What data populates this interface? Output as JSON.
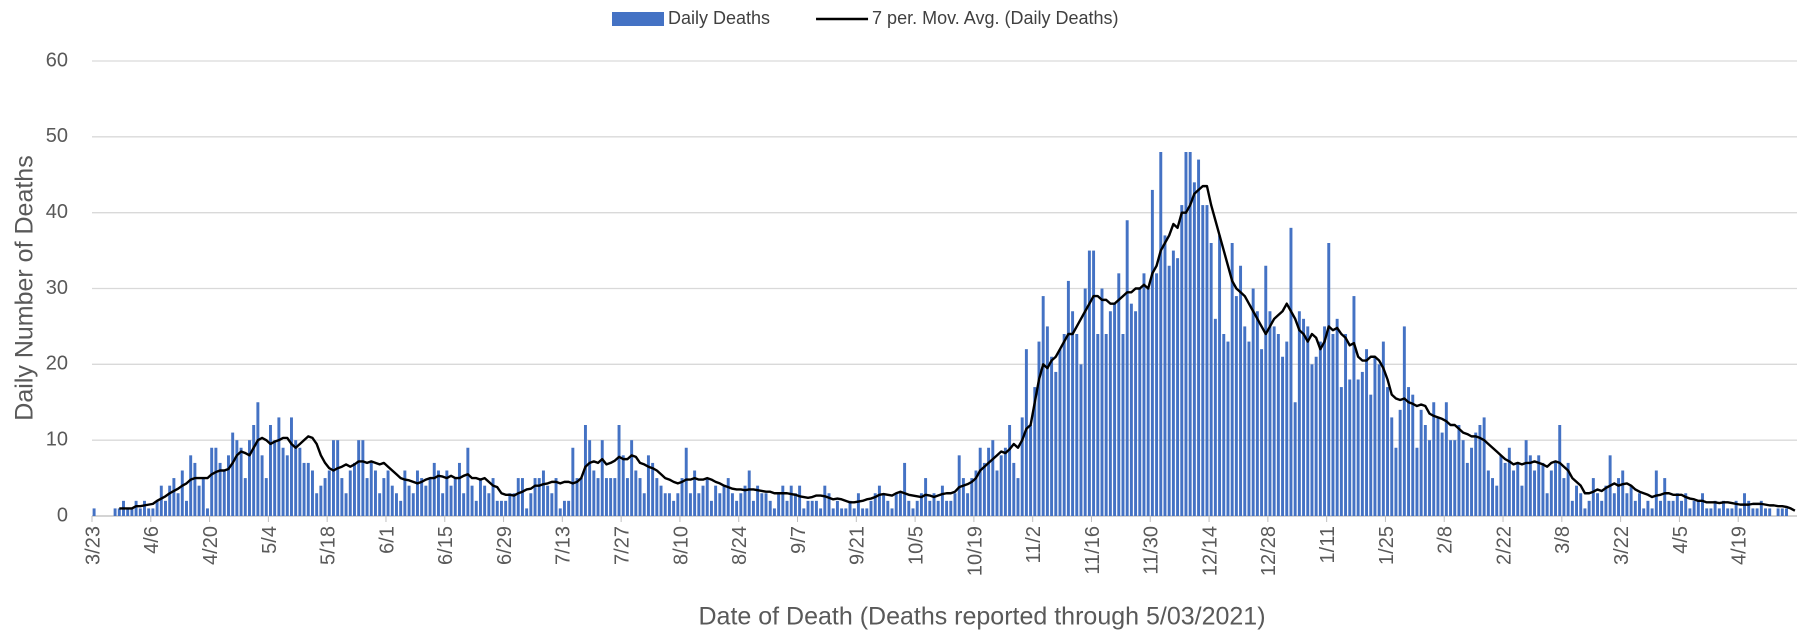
{
  "chart_data": {
    "type": "bar",
    "x_label": "Date of Death (Deaths reported through 5/03/2021)",
    "y_label": "Daily Number of Deaths",
    "ylim": [
      0,
      60
    ],
    "yticks": [
      0,
      10,
      20,
      30,
      40,
      50,
      60
    ],
    "grid": true,
    "legend": "top",
    "categories": [
      "3/23",
      null,
      null,
      null,
      null,
      null,
      null,
      null,
      null,
      null,
      null,
      null,
      null,
      null,
      "4/6",
      null,
      null,
      null,
      null,
      null,
      null,
      null,
      null,
      null,
      null,
      null,
      null,
      null,
      "4/20",
      null,
      null,
      null,
      null,
      null,
      null,
      null,
      null,
      null,
      null,
      null,
      null,
      null,
      "5/4",
      null,
      null,
      null,
      null,
      null,
      null,
      null,
      null,
      null,
      null,
      null,
      null,
      null,
      "5/18",
      null,
      null,
      null,
      null,
      null,
      null,
      null,
      null,
      null,
      null,
      null,
      null,
      null,
      "6/1",
      null,
      null,
      null,
      null,
      null,
      null,
      null,
      null,
      null,
      null,
      null,
      null,
      null,
      "6/15",
      null,
      null,
      null,
      null,
      null,
      null,
      null,
      null,
      null,
      null,
      null,
      null,
      null,
      "6/29",
      null,
      null,
      null,
      null,
      null,
      null,
      null,
      null,
      null,
      null,
      null,
      null,
      null,
      "7/13",
      null,
      null,
      null,
      null,
      null,
      null,
      null,
      null,
      null,
      null,
      null,
      null,
      null,
      "7/27",
      null,
      null,
      null,
      null,
      null,
      null,
      null,
      null,
      null,
      null,
      null,
      null,
      null,
      "8/10",
      null,
      null,
      null,
      null,
      null,
      null,
      null,
      null,
      null,
      null,
      null,
      null,
      null,
      "8/24",
      null,
      null,
      null,
      null,
      null,
      null,
      null,
      null,
      null,
      null,
      null,
      null,
      null,
      "9/7",
      null,
      null,
      null,
      null,
      null,
      null,
      null,
      null,
      null,
      null,
      null,
      null,
      null,
      "9/21",
      null,
      null,
      null,
      null,
      null,
      null,
      null,
      null,
      null,
      null,
      null,
      null,
      null,
      "10/5",
      null,
      null,
      null,
      null,
      null,
      null,
      null,
      null,
      null,
      null,
      null,
      null,
      null,
      "10/19",
      null,
      null,
      null,
      null,
      null,
      null,
      null,
      null,
      null,
      null,
      null,
      null,
      null,
      "11/2",
      null,
      null,
      null,
      null,
      null,
      null,
      null,
      null,
      null,
      null,
      null,
      null,
      null,
      "11/16",
      null,
      null,
      null,
      null,
      null,
      null,
      null,
      null,
      null,
      null,
      null,
      null,
      null,
      "11/30",
      null,
      null,
      null,
      null,
      null,
      null,
      null,
      null,
      null,
      null,
      null,
      null,
      null,
      "12/14",
      null,
      null,
      null,
      null,
      null,
      null,
      null,
      null,
      null,
      null,
      null,
      null,
      null,
      "12/28",
      null,
      null,
      null,
      null,
      null,
      null,
      null,
      null,
      null,
      null,
      null,
      null,
      null,
      "1/11",
      null,
      null,
      null,
      null,
      null,
      null,
      null,
      null,
      null,
      null,
      null,
      null,
      null,
      "1/25",
      null,
      null,
      null,
      null,
      null,
      null,
      null,
      null,
      null,
      null,
      null,
      null,
      null,
      "2/8",
      null,
      null,
      null,
      null,
      null,
      null,
      null,
      null,
      null,
      null,
      null,
      null,
      null,
      "2/22",
      null,
      null,
      null,
      null,
      null,
      null,
      null,
      null,
      null,
      null,
      null,
      null,
      null,
      "3/8",
      null,
      null,
      null,
      null,
      null,
      null,
      null,
      null,
      null,
      null,
      null,
      null,
      null,
      "3/22",
      null,
      null,
      null,
      null,
      null,
      null,
      null,
      null,
      null,
      null,
      null,
      null,
      null,
      "4/5",
      null,
      null,
      null,
      null,
      null,
      null,
      null,
      null,
      null,
      null,
      null,
      null,
      null,
      "4/19",
      null,
      null,
      null,
      null,
      null,
      null,
      null,
      null,
      null,
      null,
      null,
      null,
      null
    ],
    "series": [
      {
        "name": "Daily Deaths",
        "type": "bar",
        "color": "#4472c4",
        "values": [
          1,
          0,
          0,
          0,
          0,
          1,
          1,
          2,
          1,
          1,
          2,
          1,
          2,
          1,
          1,
          2,
          4,
          2,
          4,
          5,
          3,
          6,
          2,
          8,
          7,
          4,
          5,
          1,
          9,
          9,
          7,
          6,
          8,
          11,
          10,
          9,
          5,
          10,
          12,
          15,
          8,
          5,
          12,
          10,
          13,
          9,
          8,
          13,
          10,
          9,
          7,
          7,
          6,
          3,
          4,
          5,
          6,
          10,
          10,
          5,
          3,
          6,
          7,
          10,
          10,
          5,
          7,
          6,
          3,
          5,
          6,
          4,
          3,
          2,
          6,
          4,
          3,
          6,
          5,
          4,
          5,
          7,
          6,
          3,
          6,
          4,
          5,
          7,
          3,
          9,
          4,
          2,
          5,
          4,
          3,
          5,
          2,
          2,
          2,
          3,
          3,
          5,
          5,
          1,
          3,
          5,
          5,
          6,
          4,
          3,
          5,
          1,
          2,
          2,
          9,
          5,
          5,
          12,
          10,
          6,
          5,
          10,
          5,
          5,
          5,
          12,
          8,
          5,
          10,
          6,
          5,
          3,
          8,
          7,
          5,
          4,
          3,
          3,
          2,
          3,
          5,
          9,
          3,
          6,
          3,
          4,
          5,
          2,
          4,
          3,
          4,
          5,
          3,
          2,
          3,
          4,
          6,
          2,
          4,
          3,
          3,
          2,
          1,
          3,
          4,
          2,
          4,
          3,
          4,
          1,
          2,
          2,
          2,
          1,
          4,
          3,
          1,
          2,
          1,
          1,
          2,
          1,
          3,
          1,
          1,
          2,
          3,
          4,
          3,
          2,
          1,
          3,
          3,
          7,
          2,
          1,
          2,
          3,
          5,
          2,
          3,
          2,
          4,
          2,
          2,
          3,
          8,
          5,
          3,
          5,
          6,
          9,
          7,
          9,
          10,
          6,
          8,
          9,
          12,
          7,
          5,
          13,
          22,
          12,
          17,
          23,
          29,
          25,
          21,
          19,
          22,
          24,
          31,
          27,
          24,
          20,
          30,
          35,
          35,
          24,
          30,
          24,
          27,
          28,
          32,
          24,
          39,
          28,
          27,
          30,
          32,
          30,
          43,
          32,
          48,
          37,
          33,
          35,
          34,
          41,
          48,
          48,
          44,
          47,
          41,
          41,
          36,
          26,
          37,
          24,
          23,
          36,
          29,
          33,
          25,
          23,
          30,
          27,
          22,
          33,
          27,
          25,
          24,
          21,
          23,
          38,
          15,
          27,
          26,
          25,
          20,
          21,
          23,
          25,
          36,
          24,
          26,
          17,
          24,
          18,
          29,
          18,
          19,
          22,
          16,
          21,
          20,
          23,
          17,
          13,
          9,
          14,
          25,
          17,
          16,
          9,
          14,
          12,
          10,
          15,
          13,
          11,
          15,
          10,
          10,
          12,
          10,
          7,
          9,
          11,
          12,
          13,
          6,
          5,
          4,
          8,
          7,
          9,
          6,
          7,
          4,
          10,
          8,
          6,
          8,
          7,
          3,
          6,
          7,
          12,
          5,
          7,
          2,
          4,
          3,
          1,
          2,
          5,
          3,
          2,
          4,
          8,
          3,
          5,
          6,
          3,
          4,
          2,
          3,
          1,
          2,
          1,
          6,
          2,
          5,
          2,
          2,
          3,
          2,
          3,
          1,
          2,
          2,
          3,
          1,
          1,
          2,
          1,
          2,
          1,
          1,
          2,
          1,
          3,
          2,
          1,
          1,
          2,
          1,
          1,
          0,
          1,
          1,
          1,
          0,
          0
        ]
      },
      {
        "name": "7 per. Mov. Avg. (Daily Deaths)",
        "type": "line",
        "color": "#000000",
        "values": [
          null,
          null,
          null,
          null,
          null,
          null,
          1,
          1,
          1,
          1,
          1.3,
          1.3,
          1.4,
          1.5,
          1.6,
          2,
          2.3,
          2.6,
          3,
          3.3,
          3.6,
          4,
          4.3,
          4.8,
          5,
          5,
          5,
          5,
          5.5,
          5.8,
          6,
          6,
          6.2,
          7,
          8,
          8.5,
          8.3,
          8,
          9,
          10,
          10.3,
          10,
          9.5,
          9.8,
          10,
          10.3,
          10.3,
          9.5,
          9,
          9.5,
          10,
          10.5,
          10.3,
          9.5,
          8,
          7,
          6.3,
          6,
          6.3,
          6.5,
          6.8,
          6.5,
          6.8,
          7.2,
          7.2,
          7,
          7.2,
          7,
          6.8,
          7,
          6.5,
          6,
          5.5,
          5,
          4.8,
          4.7,
          4.5,
          4.3,
          4.5,
          4.8,
          5,
          5,
          5.3,
          5.2,
          5,
          5.3,
          5,
          5,
          5.3,
          5.5,
          5,
          5,
          4.8,
          5,
          4.5,
          4,
          3.8,
          3,
          2.8,
          2.8,
          2.7,
          3,
          3.2,
          3.5,
          3.6,
          4,
          4,
          4.2,
          4.3,
          4.5,
          4.5,
          4.3,
          4.5,
          4.5,
          4.3,
          4.5,
          5,
          6.5,
          7,
          7.2,
          7,
          7.5,
          6.8,
          7,
          7.3,
          7.8,
          7.5,
          7.5,
          8,
          7.8,
          7,
          6.8,
          6.5,
          6.3,
          6,
          5.5,
          5,
          4.8,
          4.5,
          4.3,
          4.5,
          4.8,
          4.8,
          5,
          4.8,
          4.8,
          5,
          4.8,
          4.5,
          4.3,
          4,
          3.8,
          3.6,
          3.5,
          3.5,
          3.4,
          3.5,
          3.5,
          3.4,
          3.3,
          3.2,
          3.2,
          3,
          3,
          3,
          3,
          2.9,
          2.8,
          2.6,
          2.5,
          2.4,
          2.5,
          2.7,
          2.7,
          2.6,
          2.4,
          2.2,
          2.3,
          2.2,
          2,
          1.8,
          1.8,
          1.9,
          2,
          2.2,
          2.3,
          2.5,
          2.8,
          2.9,
          2.8,
          2.7,
          3,
          3.2,
          3,
          2.8,
          2.7,
          2.6,
          2.5,
          2.8,
          2.7,
          2.5,
          2.7,
          2.9,
          3,
          3,
          3.2,
          3.8,
          4,
          4.2,
          4.5,
          5,
          6,
          6.5,
          7,
          7.5,
          8,
          8.5,
          8.3,
          8.8,
          9.5,
          9,
          10,
          11.5,
          12,
          15,
          18,
          20,
          19.5,
          20.5,
          21,
          22,
          23,
          24,
          24,
          25,
          26,
          27,
          28,
          29,
          29,
          28.5,
          28.5,
          28,
          28,
          28.5,
          29,
          29.5,
          29.5,
          30,
          30,
          30.5,
          30,
          32,
          33,
          35,
          36,
          37,
          38.5,
          38,
          40,
          40,
          41,
          42.5,
          43,
          43.5,
          43.5,
          41,
          39,
          37,
          35,
          33,
          31,
          30,
          29.5,
          29,
          28,
          27,
          26,
          25,
          24,
          25,
          26,
          26.5,
          27,
          28,
          27,
          26,
          24.5,
          24,
          23,
          24,
          23.5,
          22,
          23,
          25,
          24.5,
          24.8,
          24,
          23.5,
          22.5,
          22.8,
          21,
          20.5,
          20.5,
          21,
          21,
          20.5,
          19.5,
          18,
          16,
          15.5,
          15.3,
          15.5,
          15,
          14.8,
          14.5,
          14.7,
          14.5,
          13.5,
          13.2,
          13,
          12.8,
          12.5,
          12,
          12,
          11.5,
          11,
          10.8,
          10.5,
          10.5,
          10.3,
          10,
          9.5,
          9,
          8.5,
          8,
          7.5,
          7.2,
          6.8,
          7,
          6.8,
          7,
          7,
          7.2,
          7,
          6.8,
          6.5,
          7,
          7.2,
          7,
          6.5,
          6,
          5,
          4.5,
          4,
          3,
          3,
          3.2,
          3.5,
          3.3,
          3.7,
          4,
          4.3,
          4,
          4.2,
          4.3,
          4,
          3.5,
          3.2,
          3,
          2.8,
          2.5,
          2.7,
          2.8,
          3,
          3,
          2.8,
          2.8,
          2.8,
          2.5,
          2.3,
          2.2,
          2,
          2,
          1.8,
          1.8,
          1.8,
          1.7,
          1.8,
          1.8,
          1.7,
          1.6,
          1.5,
          1.5,
          1.5,
          1.6,
          1.6,
          1.6,
          1.5,
          1.4,
          1.4,
          1.3,
          1.3,
          1.2,
          1,
          0.7
        ]
      }
    ]
  }
}
